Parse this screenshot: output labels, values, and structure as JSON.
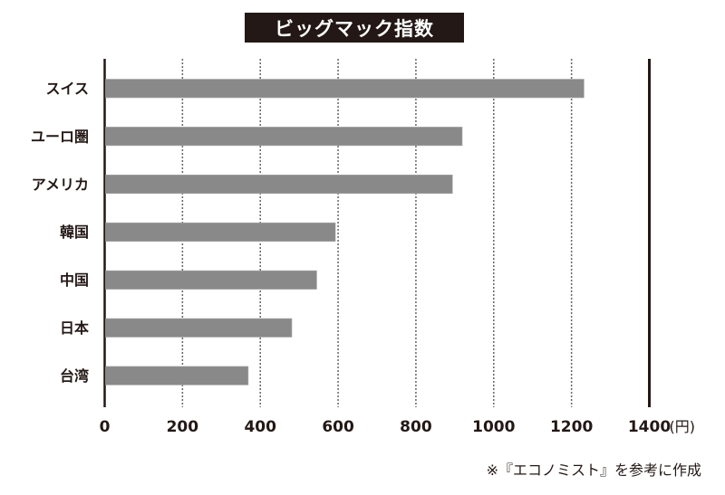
{
  "chart_data": {
    "type": "bar",
    "orientation": "horizontal",
    "title": "ビッグマック指数",
    "categories": [
      "スイス",
      "ユーロ圏",
      "アメリカ",
      "韓国",
      "中国",
      "日本",
      "台湾"
    ],
    "values": [
      1232,
      919,
      894,
      593,
      545,
      481,
      369
    ],
    "xlim": [
      0,
      1400
    ],
    "xticks": [
      "0",
      "200",
      "400",
      "600",
      "800",
      "1000",
      "1200",
      "1400"
    ],
    "xunit": "(円)",
    "grid": "vertical-dotted",
    "bar_color": "#898989",
    "note": "※『エコノミスト』を参考に作成"
  }
}
